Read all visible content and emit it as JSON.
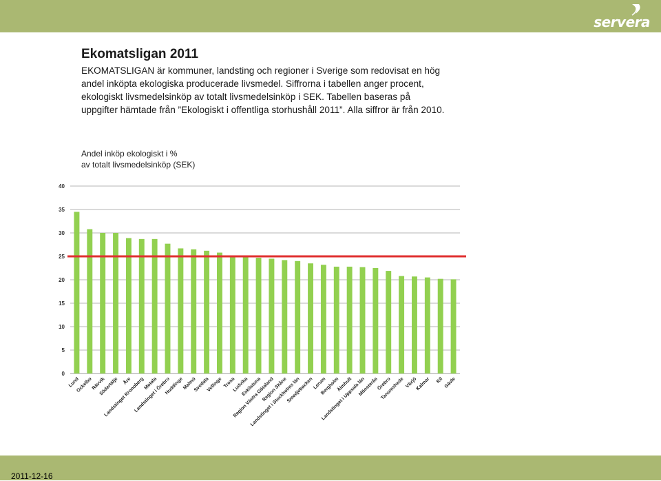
{
  "header": {
    "logo_text": "servera"
  },
  "footer": {
    "date": "2011-12-16"
  },
  "content": {
    "title": "Ekomatsligan 2011",
    "description": "EKOMATSLIGAN är kommuner, landsting och regioner i Sverige som redovisat en hög andel inköpta ekologiska producerade livsmedel. Siffrorna i tabellen anger procent, ekologiskt livsmedelsinköp av totalt livsmedelsinköp i SEK. Tabellen baseras på uppgifter hämtade från ”Ekologiskt i offentliga storhushåll 2011”. Alla siffror är från 2010.",
    "chart_subtitle_line1": "Andel inköp ekologiskt i %",
    "chart_subtitle_line2": "av totalt livsmedelsinköp (SEK)"
  },
  "chart_data": {
    "type": "bar",
    "categories": [
      "Lund",
      "Ockelbo",
      "Rävvik",
      "Södertälje",
      "Åre",
      "Landstinget Kronoberg",
      "Motala",
      "Landstinget i Örebro",
      "Huddinge",
      "Malmö",
      "Svedala",
      "Vellinge",
      "Trosa",
      "Ludvika",
      "Eskilstuna",
      "Region Västra Götaland",
      "Region Skåne",
      "Landstinget i Stockholms län",
      "Smedjebacken",
      "Lerum",
      "Bergholm",
      "Älmhult",
      "Landstinget i Uppsala län",
      "Mönsterås",
      "Örebro",
      "Tanumshede",
      "Växjö",
      "Kalmar",
      "Kil",
      "Gävle"
    ],
    "values": [
      34.5,
      30.8,
      30.0,
      30.0,
      28.9,
      28.7,
      28.7,
      27.7,
      26.7,
      26.5,
      26.2,
      25.8,
      24.9,
      24.9,
      24.7,
      24.5,
      24.2,
      24.0,
      23.5,
      23.2,
      22.8,
      22.8,
      22.7,
      22.5,
      21.9,
      20.8,
      20.7,
      20.5,
      20.2,
      20.1
    ],
    "ylim": [
      0,
      40
    ],
    "yticks": [
      0,
      5,
      10,
      15,
      20,
      25,
      30,
      35,
      40
    ],
    "reference_line": 25,
    "bar_color": "#92d050",
    "reference_color": "#e03030",
    "grid": true
  }
}
